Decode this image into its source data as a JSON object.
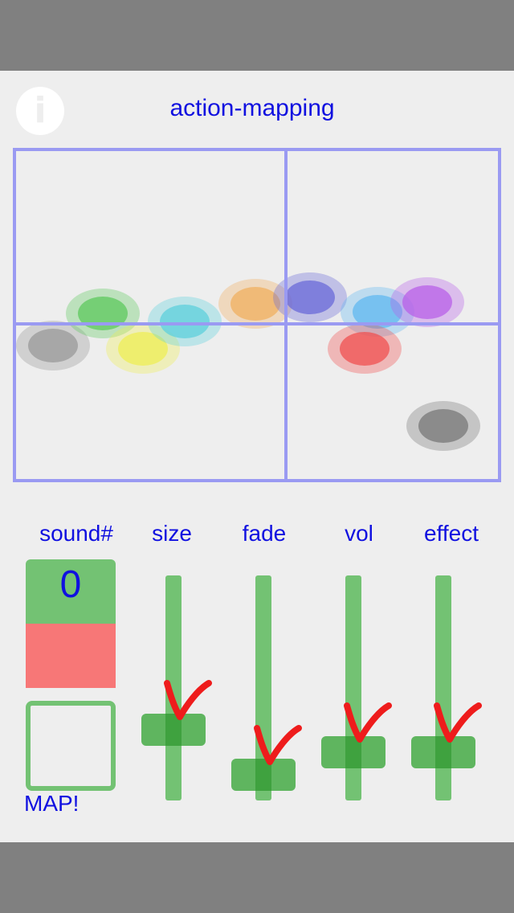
{
  "header": {
    "info_icon": "info-icon",
    "info_glyph": "i",
    "title": "action-mapping"
  },
  "mapping": {
    "grid_color": "#9a9af2",
    "dots": [
      {
        "color": "#999999"
      },
      {
        "color": "#5ec85e"
      },
      {
        "color": "#eeee55"
      },
      {
        "color": "#5ed0dc"
      },
      {
        "color": "#f0b060"
      },
      {
        "color": "#6a6ad8"
      },
      {
        "color": "#60b8f0"
      },
      {
        "color": "#b860e8"
      },
      {
        "color": "#f05050"
      },
      {
        "color": "#777777"
      }
    ]
  },
  "controls": {
    "sound_label": "sound#",
    "sound_value": "0",
    "sound_color": "#f77777",
    "map_label": "MAP!",
    "sliders": [
      {
        "id": "size",
        "label": "size",
        "value": 0.3
      },
      {
        "id": "fade",
        "label": "fade",
        "value": 0.1
      },
      {
        "id": "vol",
        "label": "vol",
        "value": 0.2
      },
      {
        "id": "effect",
        "label": "effect",
        "value": 0.2
      }
    ]
  },
  "colors": {
    "accent_text": "#1010e0",
    "control_green": "#73c273",
    "check_red": "#ee1c1c"
  }
}
